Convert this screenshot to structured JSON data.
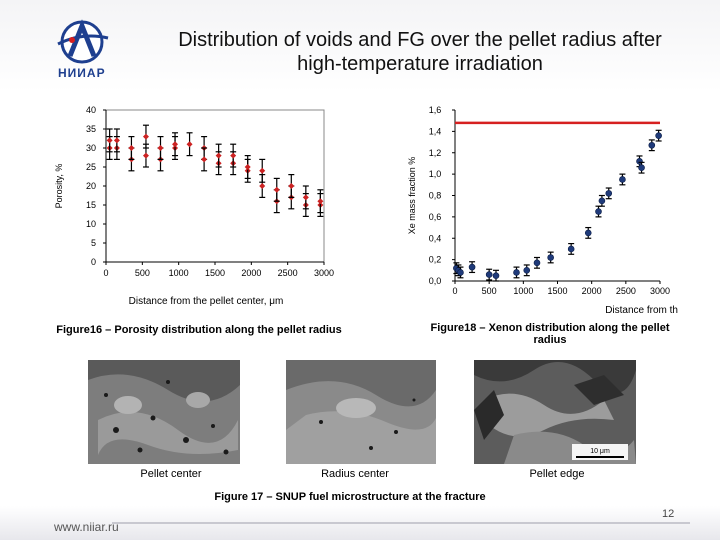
{
  "slide": {
    "title_line1": "Distribution of voids and FG over the pellet radius after",
    "title_line2": "high-temperature irradiation",
    "logo_text": "НИИАР",
    "fig16_caption": "Figure16 – Porosity distribution along the pellet radius",
    "fig18_caption_line1": "Figure18 – Xenon distribution along the pellet",
    "fig18_caption_line2": "radius",
    "fig17_caption": "Figure 17 – SNUP fuel microstructure at the fracture",
    "micro_labels": [
      "Pellet center",
      "Radius center",
      "Pellet edge"
    ],
    "scale_bar_label": "10 μm",
    "website": "www.niiar.ru",
    "page_number": "12"
  },
  "colors": {
    "porosity_marker": "#cc2222",
    "xenon_marker": "#1f3a7a",
    "reference_line": "#d62020",
    "brand_blue": "#1e3f8f"
  },
  "chart_data": [
    {
      "type": "scatter",
      "title": "",
      "xlabel": "Distance from the pellet center, μm",
      "ylabel": "Porosity, %",
      "xlim": [
        0,
        3000
      ],
      "ylim": [
        0,
        40
      ],
      "xticks": [
        "0",
        "500",
        "1000",
        "1500",
        "2000",
        "2500",
        "3000"
      ],
      "yticks": [
        "0",
        "5",
        "10",
        "15",
        "20",
        "25",
        "30",
        "35",
        "40"
      ],
      "grid": false,
      "marker": "diamond",
      "error_bars": true,
      "points": [
        {
          "x": 50,
          "y": 30,
          "err": 3
        },
        {
          "x": 50,
          "y": 32,
          "err": 3
        },
        {
          "x": 150,
          "y": 30,
          "err": 3
        },
        {
          "x": 150,
          "y": 32,
          "err": 3
        },
        {
          "x": 350,
          "y": 27,
          "err": 3
        },
        {
          "x": 350,
          "y": 30,
          "err": 3
        },
        {
          "x": 550,
          "y": 33,
          "err": 3
        },
        {
          "x": 550,
          "y": 28,
          "err": 3
        },
        {
          "x": 750,
          "y": 27,
          "err": 3
        },
        {
          "x": 750,
          "y": 30,
          "err": 3
        },
        {
          "x": 950,
          "y": 30,
          "err": 3
        },
        {
          "x": 950,
          "y": 31,
          "err": 3
        },
        {
          "x": 1150,
          "y": 31,
          "err": 3
        },
        {
          "x": 1350,
          "y": 30,
          "err": 3
        },
        {
          "x": 1350,
          "y": 27,
          "err": 3
        },
        {
          "x": 1550,
          "y": 26,
          "err": 3
        },
        {
          "x": 1550,
          "y": 28,
          "err": 3
        },
        {
          "x": 1750,
          "y": 26,
          "err": 3
        },
        {
          "x": 1750,
          "y": 28,
          "err": 3
        },
        {
          "x": 1950,
          "y": 24,
          "err": 3
        },
        {
          "x": 1950,
          "y": 25,
          "err": 3
        },
        {
          "x": 2150,
          "y": 20,
          "err": 3
        },
        {
          "x": 2150,
          "y": 24,
          "err": 3
        },
        {
          "x": 2350,
          "y": 16,
          "err": 3
        },
        {
          "x": 2350,
          "y": 19,
          "err": 3
        },
        {
          "x": 2550,
          "y": 17,
          "err": 3
        },
        {
          "x": 2550,
          "y": 20,
          "err": 3
        },
        {
          "x": 2750,
          "y": 15,
          "err": 3
        },
        {
          "x": 2750,
          "y": 17,
          "err": 3
        },
        {
          "x": 2950,
          "y": 15,
          "err": 3
        },
        {
          "x": 2950,
          "y": 16,
          "err": 3
        }
      ]
    },
    {
      "type": "scatter",
      "title": "",
      "xlabel": "Distance from th",
      "ylabel": "Xe mass fraction %",
      "xlim": [
        0,
        3000
      ],
      "ylim": [
        0,
        1.6
      ],
      "xticks": [
        "0",
        "500",
        "1000",
        "1500",
        "2000",
        "2500",
        "3000"
      ],
      "yticks": [
        "0,0",
        "0,2",
        "0,4",
        "0,6",
        "0,8",
        "1,0",
        "1,2",
        "1,4",
        "1,6"
      ],
      "grid": false,
      "marker": "circle",
      "error_bars": true,
      "reference_line": {
        "y": 1.48
      },
      "points": [
        {
          "x": 20,
          "y": 0.12,
          "err": 0.05
        },
        {
          "x": 50,
          "y": 0.1,
          "err": 0.05
        },
        {
          "x": 80,
          "y": 0.08,
          "err": 0.05
        },
        {
          "x": 250,
          "y": 0.13,
          "err": 0.05
        },
        {
          "x": 500,
          "y": 0.06,
          "err": 0.05
        },
        {
          "x": 600,
          "y": 0.05,
          "err": 0.05
        },
        {
          "x": 900,
          "y": 0.08,
          "err": 0.05
        },
        {
          "x": 1050,
          "y": 0.1,
          "err": 0.05
        },
        {
          "x": 1200,
          "y": 0.17,
          "err": 0.05
        },
        {
          "x": 1400,
          "y": 0.22,
          "err": 0.05
        },
        {
          "x": 1700,
          "y": 0.3,
          "err": 0.05
        },
        {
          "x": 1950,
          "y": 0.45,
          "err": 0.05
        },
        {
          "x": 2100,
          "y": 0.65,
          "err": 0.05
        },
        {
          "x": 2150,
          "y": 0.75,
          "err": 0.05
        },
        {
          "x": 2250,
          "y": 0.82,
          "err": 0.05
        },
        {
          "x": 2450,
          "y": 0.95,
          "err": 0.05
        },
        {
          "x": 2700,
          "y": 1.12,
          "err": 0.05
        },
        {
          "x": 2730,
          "y": 1.06,
          "err": 0.05
        },
        {
          "x": 2880,
          "y": 1.27,
          "err": 0.05
        },
        {
          "x": 2980,
          "y": 1.36,
          "err": 0.05
        }
      ]
    }
  ]
}
